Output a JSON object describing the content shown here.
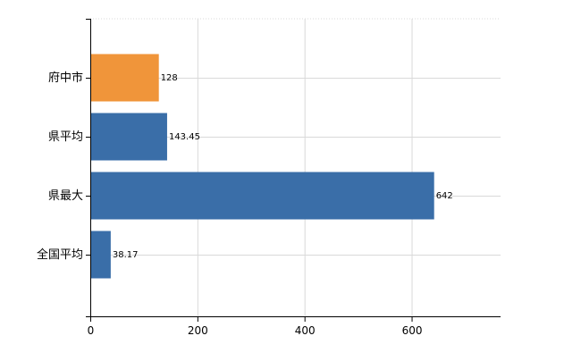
{
  "chart_data": {
    "type": "bar",
    "orientation": "horizontal",
    "categories": [
      "府中市",
      "県平均",
      "県最大",
      "全国平均"
    ],
    "values": [
      128,
      143.45,
      642,
      38.17
    ],
    "data_labels": [
      "128",
      "143.45",
      "642",
      "38.17"
    ],
    "bar_colors": [
      "#f0953a",
      "#3a6ea8",
      "#3a6ea8",
      "#3a6ea8"
    ],
    "xlim": [
      0,
      766
    ],
    "xticks": [
      0,
      200,
      400,
      600
    ],
    "xtick_labels": [
      "0",
      "200",
      "400",
      "600"
    ],
    "title": "",
    "xlabel": "",
    "ylabel": "",
    "grid": true,
    "legend": "none"
  }
}
